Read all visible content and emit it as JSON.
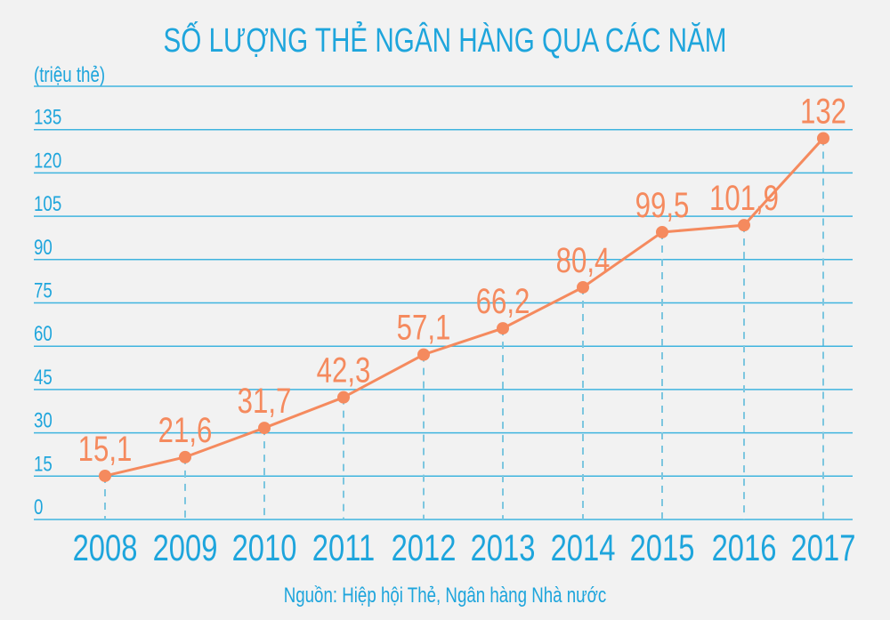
{
  "chart_data": {
    "type": "line",
    "title": "SỐ LƯỢNG THẺ NGÂN HÀNG QUA CÁC NĂM",
    "ylabel": "(triệu thẻ)",
    "xlabel": "",
    "source": "Nguồn: Hiệp hội Thẻ, Ngân hàng Nhà nước",
    "ylim": [
      0,
      150
    ],
    "yticks": [
      0,
      15,
      30,
      45,
      60,
      75,
      90,
      105,
      120,
      135
    ],
    "grid": true,
    "categories": [
      "2008",
      "2009",
      "2010",
      "2011",
      "2012",
      "2013",
      "2014",
      "2015",
      "2016",
      "2017"
    ],
    "values": [
      15.1,
      21.6,
      31.7,
      42.3,
      57.1,
      66.2,
      80.4,
      99.5,
      101.9,
      132
    ],
    "data_labels": [
      "15,1",
      "21,6",
      "31,7",
      "42,3",
      "57,1",
      "66,2",
      "80,4",
      "99,5",
      "101,9",
      "132"
    ],
    "colors": {
      "axis": "#1ea5dc",
      "grid": "#3fb4df",
      "series": "#f58a5e",
      "dropline": "#7cc6df",
      "background": "#f2f2f2"
    }
  }
}
